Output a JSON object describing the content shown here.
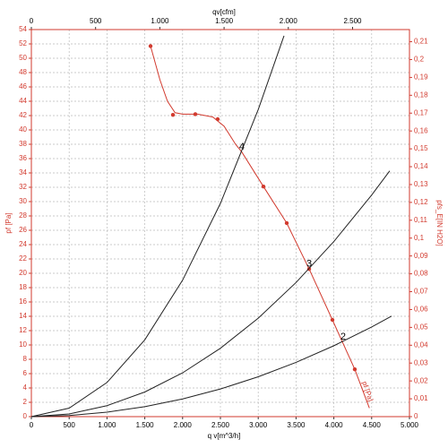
{
  "chart_data": {
    "type": "line",
    "xlabel": "q v[m^3/h]",
    "ylabel": "pf [Pa]",
    "y2label": "pfs_E[IN H2O]",
    "x2label": "qv[cfm]",
    "xlim": [
      0,
      5000
    ],
    "xticks": [
      0,
      500,
      {
        "value": 1000,
        "label": "1.000"
      },
      {
        "value": 1500,
        "label": "1.500"
      },
      {
        "value": 2000,
        "label": "2.000"
      },
      {
        "value": 2500,
        "label": "2.500"
      },
      {
        "value": 3000,
        "label": "3.000"
      },
      {
        "value": 3500,
        "label": "3.500"
      },
      {
        "value": 4000,
        "label": "4.000"
      },
      {
        "value": 4500,
        "label": "4.500"
      },
      {
        "value": 5000,
        "label": "5.000"
      }
    ],
    "x2lim": [
      0,
      2942.9
    ],
    "x2ticks": [
      0,
      500,
      {
        "value": 1000,
        "label": "1.000"
      },
      {
        "value": 1500,
        "label": "1.500"
      },
      {
        "value": 2000,
        "label": "2.000"
      },
      {
        "value": 2500,
        "label": "2.500"
      }
    ],
    "ylim": [
      0,
      54
    ],
    "yticks": [
      0,
      2,
      4,
      6,
      8,
      10,
      12,
      14,
      16,
      18,
      20,
      22,
      24,
      26,
      28,
      30,
      32,
      34,
      36,
      38,
      40,
      42,
      44,
      46,
      48,
      50,
      52,
      54
    ],
    "y2lim": [
      0,
      0.2168
    ],
    "y2ticks": [
      0,
      {
        "value": 0.01,
        "label": "0,01"
      },
      {
        "value": 0.02,
        "label": "0,02"
      },
      {
        "value": 0.03,
        "label": "0,03"
      },
      {
        "value": 0.04,
        "label": "0,04"
      },
      {
        "value": 0.05,
        "label": "0,05"
      },
      {
        "value": 0.06,
        "label": "0,06"
      },
      {
        "value": 0.07,
        "label": "0,07"
      },
      {
        "value": 0.08,
        "label": "0,08"
      },
      {
        "value": 0.09,
        "label": "0,09"
      },
      {
        "value": 0.1,
        "label": "0,1"
      },
      {
        "value": 0.11,
        "label": "0,11"
      },
      {
        "value": 0.12,
        "label": "0,12"
      },
      {
        "value": 0.13,
        "label": "0,13"
      },
      {
        "value": 0.14,
        "label": "0,14"
      },
      {
        "value": 0.15,
        "label": "0,15"
      },
      {
        "value": 0.16,
        "label": "0,16"
      },
      {
        "value": 0.17,
        "label": "0,17"
      },
      {
        "value": 0.18,
        "label": "0,18"
      },
      {
        "value": 0.19,
        "label": "0,19"
      },
      {
        "value": 0.2,
        "label": "0,2"
      },
      {
        "value": 0.21,
        "label": "0,21"
      }
    ],
    "grid": true,
    "series": [
      {
        "color": "#d23a2e",
        "x": [
          1576,
          1700,
          1800,
          1900,
          2000,
          2200,
          2400,
          2550,
          2700,
          2784,
          3069,
          3377,
          3673,
          3981,
          4277,
          4470
        ],
        "values": [
          51.7,
          47,
          44,
          42.4,
          42.2,
          42.2,
          41.8,
          40.5,
          38,
          36.9,
          32.1,
          27,
          20.6,
          13.5,
          6.6,
          1.2
        ],
        "markers_x": [
          1576,
          1872,
          2168,
          2464,
          3069,
          3377,
          3673,
          3981,
          4277
        ],
        "markers": [
          51.7,
          42.1,
          42.2,
          41.5,
          32.1,
          27,
          20.6,
          13.5,
          6.6
        ]
      },
      {
        "color": "#222222",
        "x": [
          0,
          500,
          1000,
          1500,
          2000,
          2500,
          3000,
          3341
        ],
        "values": [
          0,
          1.19,
          4.76,
          10.71,
          19.04,
          29.75,
          42.84,
          53.13
        ]
      },
      {
        "color": "#222222",
        "x": [
          0,
          500,
          1000,
          1500,
          2000,
          2500,
          3000,
          3500,
          4000,
          4500,
          4739
        ],
        "values": [
          0,
          0.38,
          1.53,
          3.44,
          6.11,
          9.54,
          13.74,
          18.71,
          24.43,
          30.92,
          34.29
        ]
      },
      {
        "color": "#222222",
        "x": [
          0,
          500,
          1000,
          1500,
          2000,
          2500,
          3000,
          3500,
          4000,
          4500,
          4763
        ],
        "values": [
          0,
          0.15,
          0.62,
          1.39,
          2.47,
          3.86,
          5.56,
          7.57,
          9.89,
          12.51,
          14.02
        ]
      }
    ],
    "annotations": [
      {
        "text": "4",
        "x": 2784,
        "y": 37.6
      },
      {
        "text": "3",
        "x": 3673,
        "y": 21.3
      },
      {
        "text": "2",
        "x": 4123,
        "y": 11.1
      },
      {
        "text": "pf [Pa]",
        "x": 4440,
        "y": 3.5
      }
    ]
  }
}
